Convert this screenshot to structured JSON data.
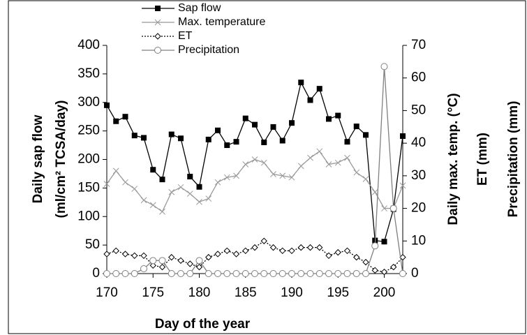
{
  "chart_data": {
    "type": "line",
    "x_label": "Day of the year",
    "y_label": [
      "Daily sap flow",
      "(ml/cm² TCSA/day)"
    ],
    "y2_label": [
      "Daily max. temp. (°C)",
      "ET (mm)",
      "Precipitation (mm)"
    ],
    "x": [
      170,
      171,
      172,
      173,
      174,
      175,
      176,
      177,
      178,
      179,
      180,
      181,
      182,
      183,
      184,
      185,
      186,
      187,
      188,
      189,
      190,
      191,
      192,
      193,
      194,
      195,
      196,
      197,
      198,
      199,
      200,
      201,
      202
    ],
    "xlim": [
      170,
      202
    ],
    "xticks": [
      170,
      175,
      180,
      185,
      190,
      195,
      200
    ],
    "ylim": [
      0,
      400
    ],
    "yticks": [
      0,
      50,
      100,
      150,
      200,
      250,
      300,
      350,
      400
    ],
    "y2lim": [
      0,
      70
    ],
    "y2ticks": [
      0,
      10,
      20,
      30,
      40,
      50,
      60,
      70
    ],
    "series": [
      {
        "name": "Sap flow",
        "color": "#000000",
        "marker": "square",
        "dash": "solid",
        "values": [
          295,
          267,
          275,
          242,
          238,
          182,
          165,
          244,
          237,
          170,
          152,
          235,
          251,
          225,
          231,
          272,
          261,
          230,
          257,
          233,
          264,
          335,
          304,
          324,
          271,
          277,
          231,
          258,
          243,
          58,
          56,
          113,
          241
        ]
      },
      {
        "name": "Max. temperature",
        "color": "#999999",
        "marker": "cross",
        "dash": "solid",
        "axis": "y2",
        "values": [
          27.5,
          31.5,
          28,
          26,
          22.5,
          21,
          19,
          25,
          26.5,
          24.5,
          22,
          23,
          28,
          29.5,
          30,
          33.5,
          35,
          34,
          30.5,
          30,
          29.5,
          33,
          35.5,
          37.5,
          33.5,
          34,
          35.5,
          31,
          29,
          25,
          20,
          20,
          27
        ]
      },
      {
        "name": "ET",
        "color": "#000000",
        "marker": "diamond",
        "dash": "dotted",
        "axis": "y2",
        "values": [
          6,
          7,
          6,
          5.5,
          5.5,
          2.5,
          2,
          5,
          4,
          3,
          2,
          5,
          6,
          7,
          6,
          7,
          8,
          10,
          8,
          7,
          7,
          8,
          8,
          8,
          5.5,
          6.5,
          7,
          5,
          3.5,
          1,
          0.5,
          2,
          5
        ]
      },
      {
        "name": "Precipitation",
        "color": "#7f7f7f",
        "marker": "circle",
        "dash": "solid",
        "axis": "y2",
        "values": [
          0,
          0,
          0,
          0,
          1.5,
          4,
          4,
          0,
          0,
          0,
          4,
          0,
          0,
          0,
          0,
          0,
          0,
          0,
          0,
          0,
          0,
          0,
          0,
          0,
          0,
          0,
          0,
          0,
          0,
          8.5,
          63.5,
          20,
          0
        ]
      }
    ]
  }
}
